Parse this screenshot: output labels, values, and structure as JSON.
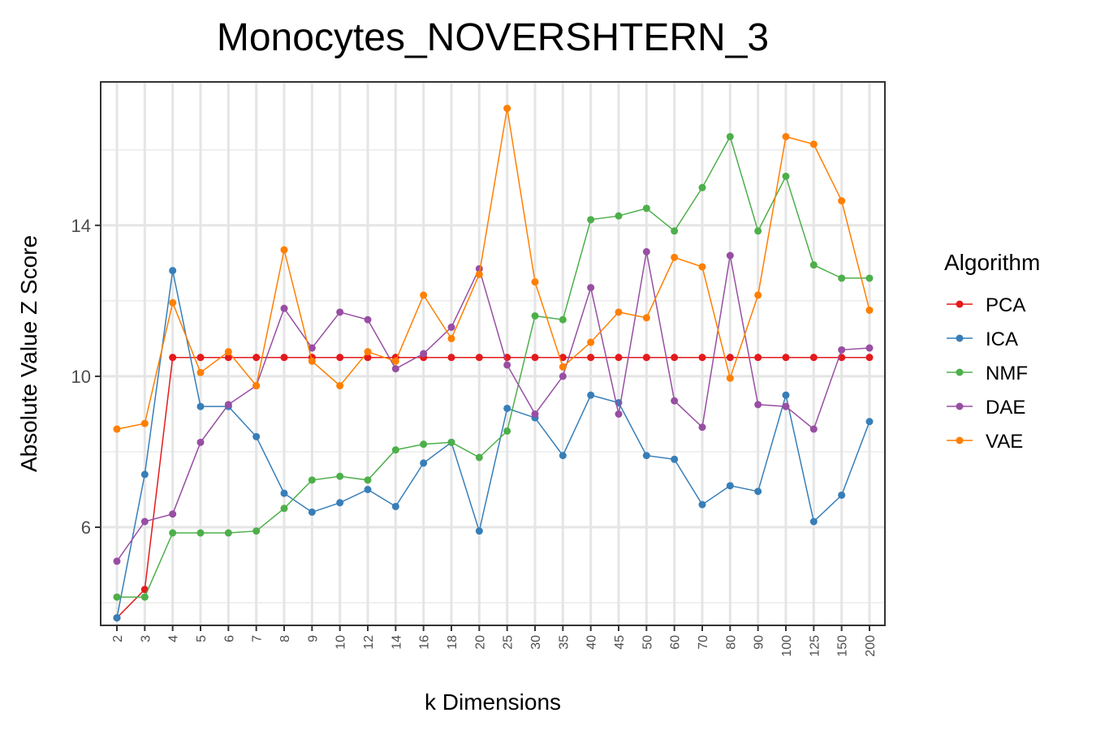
{
  "chart_data": {
    "type": "line",
    "title": "Monocytes_NOVERSHTERN_3",
    "xlabel": "k Dimensions",
    "ylabel": "Absolute Value Z Score",
    "ylim": [
      3.4,
      17.8
    ],
    "yticks": [
      6,
      10,
      14
    ],
    "grid": true,
    "legend_title": "Algorithm",
    "legend_position": "right",
    "categories": [
      "2",
      "3",
      "4",
      "5",
      "6",
      "7",
      "8",
      "9",
      "10",
      "12",
      "14",
      "16",
      "18",
      "20",
      "25",
      "30",
      "35",
      "40",
      "45",
      "50",
      "60",
      "70",
      "80",
      "90",
      "100",
      "125",
      "150",
      "200"
    ],
    "series": [
      {
        "name": "PCA",
        "color": "#e41a1c",
        "values": [
          3.6,
          4.35,
          10.5,
          10.5,
          10.5,
          10.5,
          10.5,
          10.5,
          10.5,
          10.5,
          10.5,
          10.5,
          10.5,
          10.5,
          10.5,
          10.5,
          10.5,
          10.5,
          10.5,
          10.5,
          10.5,
          10.5,
          10.5,
          10.5,
          10.5,
          10.5,
          10.5,
          10.5
        ]
      },
      {
        "name": "ICA",
        "color": "#377eb8",
        "values": [
          3.6,
          7.4,
          12.8,
          9.2,
          9.2,
          8.4,
          6.9,
          6.4,
          6.65,
          7.0,
          6.55,
          7.7,
          8.25,
          5.9,
          9.15,
          8.9,
          7.9,
          9.5,
          9.3,
          7.9,
          7.8,
          6.6,
          7.1,
          6.95,
          9.5,
          6.15,
          6.85,
          8.8
        ]
      },
      {
        "name": "NMF",
        "color": "#4daf4a",
        "values": [
          4.15,
          4.15,
          5.85,
          5.85,
          5.85,
          5.9,
          6.5,
          7.25,
          7.35,
          7.25,
          8.05,
          8.2,
          8.25,
          7.85,
          8.55,
          11.6,
          11.5,
          14.15,
          14.25,
          14.45,
          13.85,
          15.0,
          16.35,
          13.85,
          15.3,
          12.95,
          12.6,
          12.6
        ]
      },
      {
        "name": "DAE",
        "color": "#984ea3",
        "values": [
          5.1,
          6.15,
          6.35,
          8.25,
          9.25,
          9.75,
          11.8,
          10.75,
          11.7,
          11.5,
          10.2,
          10.6,
          11.3,
          12.85,
          10.3,
          9.0,
          10.0,
          12.35,
          9.0,
          13.3,
          9.35,
          8.65,
          13.2,
          9.25,
          9.2,
          8.6,
          10.7,
          10.75
        ]
      },
      {
        "name": "VAE",
        "color": "#ff7f00",
        "values": [
          8.6,
          8.75,
          11.95,
          10.1,
          10.65,
          9.75,
          13.35,
          10.4,
          9.75,
          10.65,
          10.4,
          12.15,
          11.0,
          12.7,
          17.1,
          12.5,
          10.25,
          10.9,
          11.7,
          11.55,
          13.15,
          12.9,
          9.95,
          12.15,
          16.35,
          16.15,
          14.65,
          11.75
        ]
      }
    ]
  }
}
